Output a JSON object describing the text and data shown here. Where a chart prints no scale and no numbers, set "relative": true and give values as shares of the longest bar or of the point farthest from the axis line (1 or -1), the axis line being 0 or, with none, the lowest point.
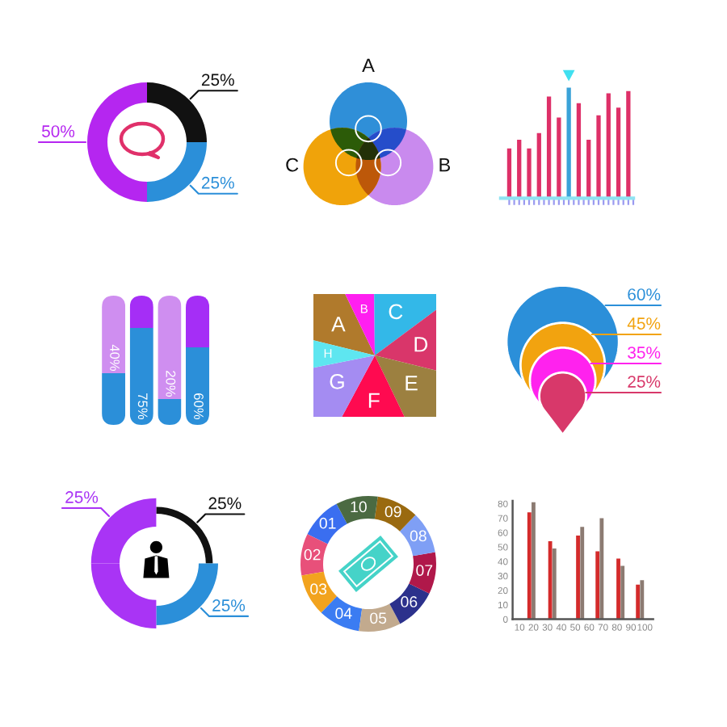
{
  "chart_data": [
    {
      "type": "donut",
      "categories": [
        null,
        null,
        null
      ],
      "values": [
        25,
        25,
        50
      ],
      "colors": [
        "#111111",
        "#2b8fd9",
        "#b526f0"
      ],
      "value_labels": [
        "25%",
        "25%",
        "50%"
      ]
    },
    {
      "type": "other",
      "categories": [
        "A",
        "B",
        "C"
      ],
      "colors": [
        "#2f8fd8",
        "#c98aee",
        "#f0a30a"
      ]
    },
    {
      "type": "bar",
      "relative": true,
      "categories": [
        null,
        null,
        null,
        null,
        null,
        null,
        null,
        null,
        null,
        null,
        null,
        null,
        null
      ],
      "values": [
        0.45,
        0.53,
        0.45,
        0.59,
        0.92,
        0.73,
        1,
        0.86,
        0.53,
        0.75,
        0.95,
        0.82,
        0.97
      ],
      "colors": [
        "#de3068",
        "#de3068",
        "#de3068",
        "#de3068",
        "#de3068",
        "#de3068",
        "#3aa2d8",
        "#de3068",
        "#de3068",
        "#de3068",
        "#de3068",
        "#de3068",
        "#de3068"
      ]
    },
    {
      "type": "bar",
      "stacked": true,
      "categories": [
        null,
        null,
        null,
        null
      ],
      "series": [
        {
          "color": "#2b8fd9",
          "values": [
            40,
            75,
            20,
            60
          ],
          "value_labels": [
            "40%",
            "75%",
            "20%",
            "60%"
          ]
        },
        {
          "colors": [
            "#cf8ef0",
            "#a52ef6",
            "#cf8ef0",
            "#a52ef6"
          ],
          "values": [
            60,
            25,
            80,
            40
          ]
        }
      ]
    },
    {
      "type": "pie",
      "categories": [
        "A",
        "B",
        "C",
        "D",
        "E",
        "F",
        "G",
        "H"
      ],
      "values": [
        14,
        7,
        15,
        14,
        14,
        15,
        14,
        7
      ],
      "colors": [
        "#b07a2c",
        "#ff1ff0",
        "#33b8e8",
        "#d9366a",
        "#9c8040",
        "#ff0a50",
        "#a48cf2",
        "#5ee6f0"
      ]
    },
    {
      "type": "other",
      "categories": [
        null,
        null,
        null,
        null
      ],
      "values": [
        60,
        45,
        35,
        25
      ],
      "colors": [
        "#2b8fd9",
        "#f2a30f",
        "#ff22ee",
        "#d8386a"
      ],
      "value_labels": [
        "60%",
        "45%",
        "35%",
        "25%"
      ]
    },
    {
      "type": "donut",
      "categories": [
        null,
        null,
        null,
        null
      ],
      "values": [
        25,
        25,
        25,
        25
      ],
      "colors": [
        "#111111",
        "#2b8fd9",
        "#a934f5",
        "#a934f5"
      ],
      "value_labels": [
        "25%",
        "25%",
        null,
        "25%"
      ]
    },
    {
      "type": "donut",
      "categories": [
        "01",
        "02",
        "03",
        "04",
        "05",
        "06",
        "07",
        "08",
        "09",
        "10"
      ],
      "values": [
        10,
        10,
        10,
        10,
        10,
        10,
        10,
        10,
        10,
        10
      ],
      "colors": [
        "#3a6ef0",
        "#e8507a",
        "#f2a31e",
        "#3b7cf2",
        "#c2aa8e",
        "#2c318c",
        "#b0184a",
        "#7f9ff5",
        "#9a6a10",
        "#4b6a42"
      ]
    },
    {
      "type": "bar",
      "series": [
        {
          "color": "#d42b2b",
          "x": [
            17,
            32,
            52,
            66,
            81,
            95
          ],
          "values": [
            74,
            54,
            58,
            47,
            42,
            24
          ]
        },
        {
          "color": "#8c7b72",
          "x": [
            20,
            35,
            55,
            69,
            84,
            98
          ],
          "values": [
            81,
            49,
            64,
            70,
            37,
            27
          ]
        }
      ],
      "xlim": [
        5,
        106
      ],
      "xticks": [
        10,
        20,
        30,
        40,
        50,
        60,
        70,
        80,
        90,
        100
      ],
      "ylim": [
        0,
        82
      ],
      "yticks": [
        0,
        10,
        20,
        30,
        40,
        50,
        60,
        70,
        80
      ]
    }
  ]
}
